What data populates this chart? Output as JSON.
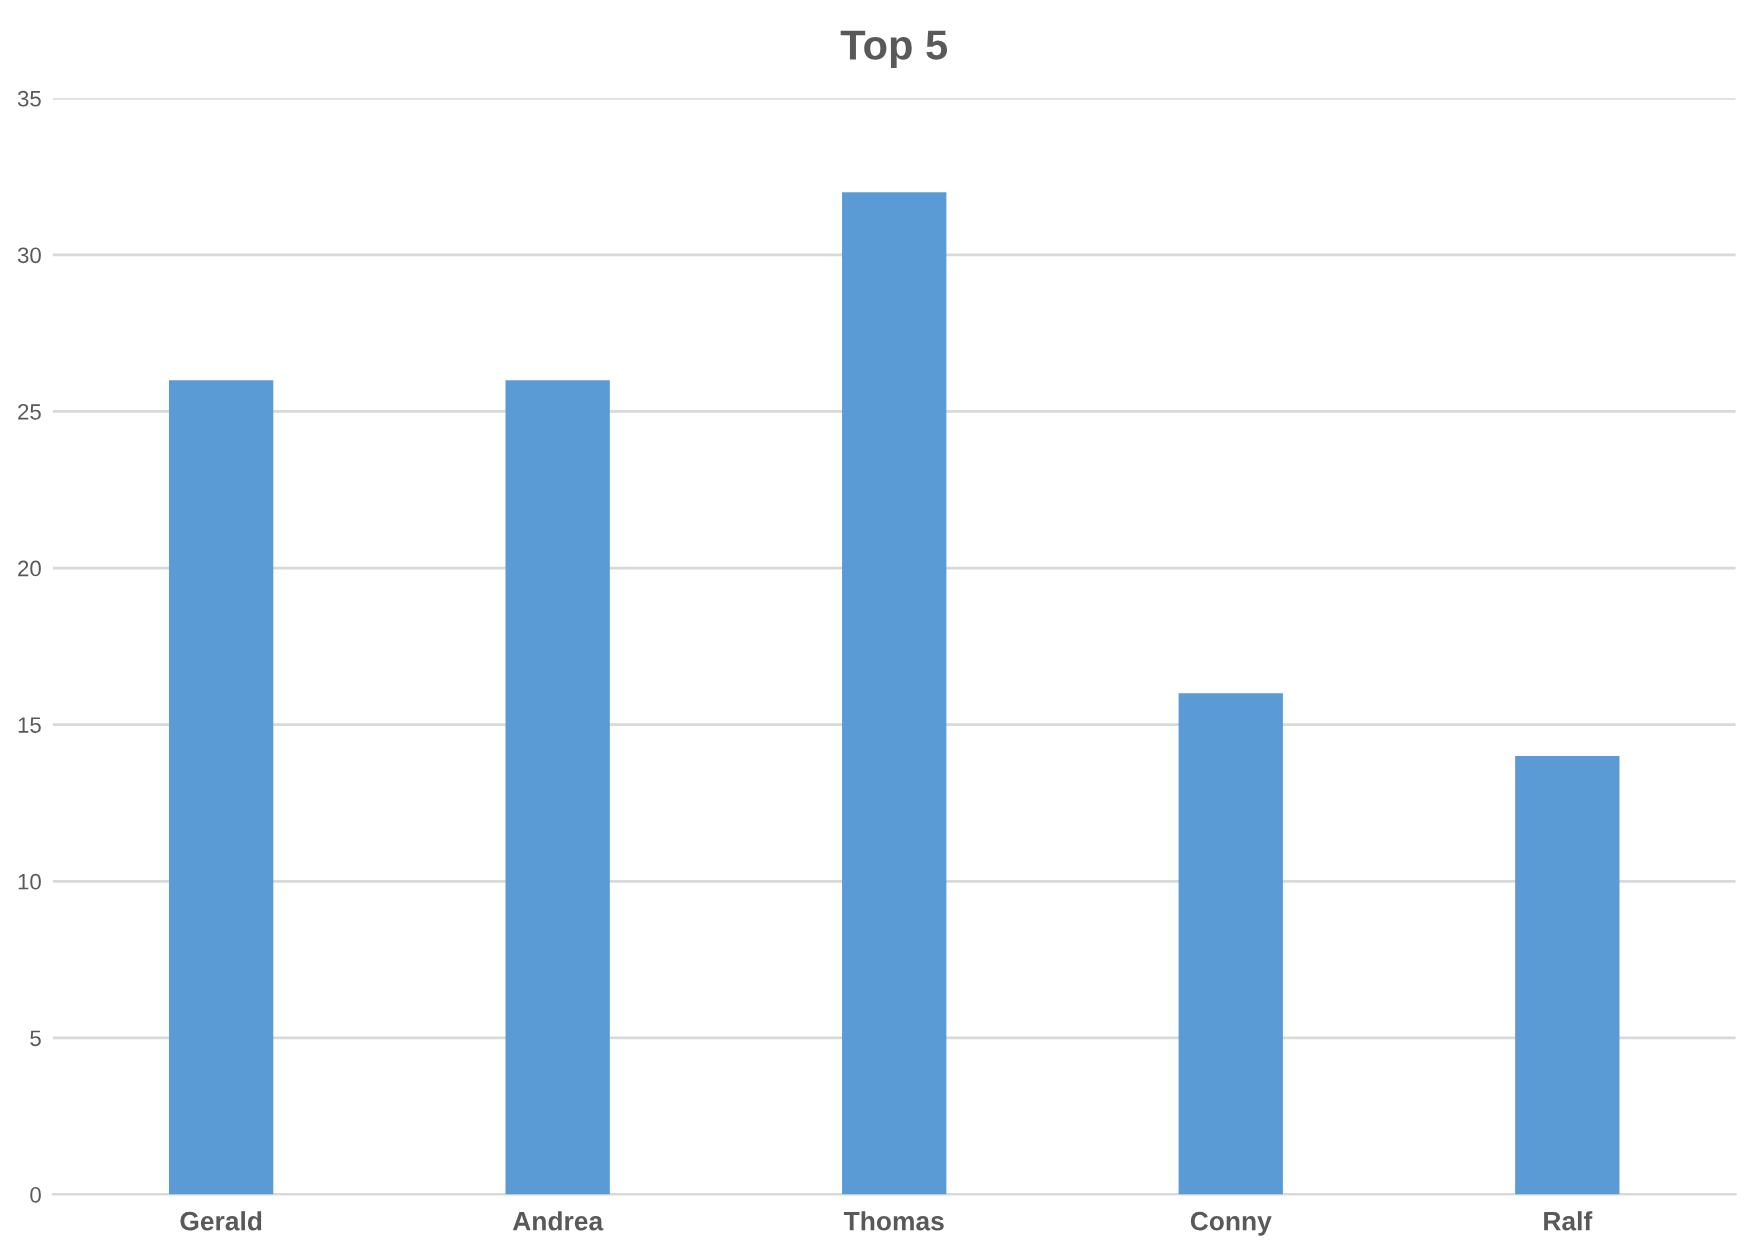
{
  "chart_data": {
    "type": "bar",
    "title": "Top 5",
    "categories": [
      "Gerald",
      "Andrea",
      "Thomas",
      "Conny",
      "Ralf"
    ],
    "values": [
      26,
      26,
      32,
      16,
      14
    ],
    "color": "#5b9bd5",
    "ylim": [
      0,
      35
    ],
    "yticks": [
      0,
      5,
      10,
      15,
      20,
      25,
      30,
      35
    ],
    "grid": "y"
  }
}
